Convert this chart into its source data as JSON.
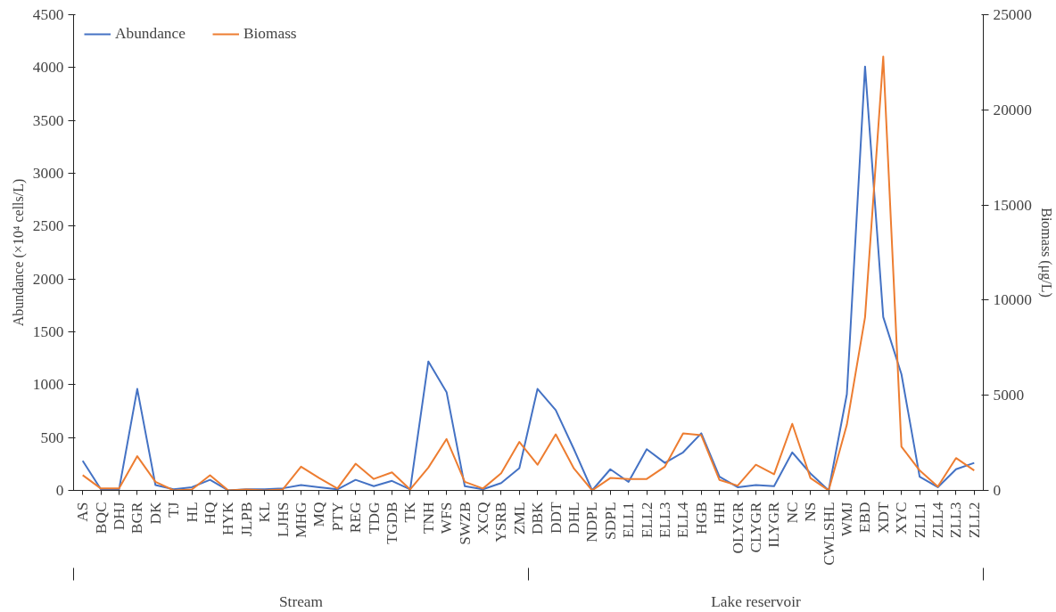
{
  "chart_data": {
    "type": "line",
    "ylabel": "Abundance (×10⁴ cells/L)",
    "y2label": "Biomass (μg/L)",
    "categories": [
      "AS",
      "BQC",
      "DHJ",
      "BGR",
      "DK",
      "TJ",
      "HL",
      "HQ",
      "HYK",
      "JLPB",
      "KL",
      "LJHS",
      "MHG",
      "MQ",
      "PTY",
      "REG",
      "TDG",
      "TGDB",
      "TK",
      "TNH",
      "WFS",
      "SWZB",
      "XCQ",
      "YSRB",
      "ZML",
      "DBK",
      "DDT",
      "DHL",
      "NDPL",
      "SDPL",
      "ELL1",
      "ELL2",
      "ELL3",
      "ELL4",
      "HGB",
      "HH",
      "OLYGR",
      "CLYGR",
      "ILYGR",
      "NC",
      "NS",
      "CWLSHL",
      "WMJ",
      "EBD",
      "XDT",
      "XYC",
      "ZLL1",
      "ZLL4",
      "ZLL3",
      "ZLL2"
    ],
    "series": [
      {
        "name": "Abundance",
        "color": "#4472c4",
        "values": [
          280,
          10,
          10,
          960,
          50,
          10,
          30,
          100,
          0,
          10,
          10,
          20,
          50,
          30,
          10,
          100,
          40,
          90,
          10,
          1220,
          930,
          40,
          10,
          70,
          210,
          960,
          760,
          390,
          0,
          200,
          80,
          390,
          260,
          360,
          540,
          130,
          30,
          50,
          40,
          360,
          160,
          0,
          910,
          4010,
          1640,
          1100,
          130,
          30,
          200,
          260
        ]
      },
      {
        "name": "Biomass",
        "color": "#ed7d31",
        "axis": "y2",
        "values": [
          800,
          100,
          100,
          1800,
          450,
          0,
          50,
          800,
          0,
          50,
          0,
          50,
          1250,
          650,
          100,
          1400,
          600,
          950,
          50,
          1200,
          2700,
          450,
          100,
          900,
          2550,
          1350,
          2950,
          1150,
          0,
          650,
          600,
          600,
          1250,
          3000,
          2900,
          550,
          250,
          1350,
          850,
          3500,
          650,
          0,
          3450,
          9100,
          22800,
          2300,
          1050,
          200,
          1700,
          1050
        ]
      }
    ],
    "ylim": [
      0,
      4500
    ],
    "yticks": [
      0,
      500,
      1000,
      1500,
      2000,
      2500,
      3000,
      3500,
      4000,
      4500
    ],
    "y2lim": [
      0,
      25000
    ],
    "y2ticks": [
      0,
      5000,
      10000,
      15000,
      20000,
      25000
    ],
    "annotations": [
      "Stream",
      "Lake reservoir"
    ],
    "legend": "top left",
    "grid": false,
    "marker": "none",
    "line_style": "solid"
  }
}
